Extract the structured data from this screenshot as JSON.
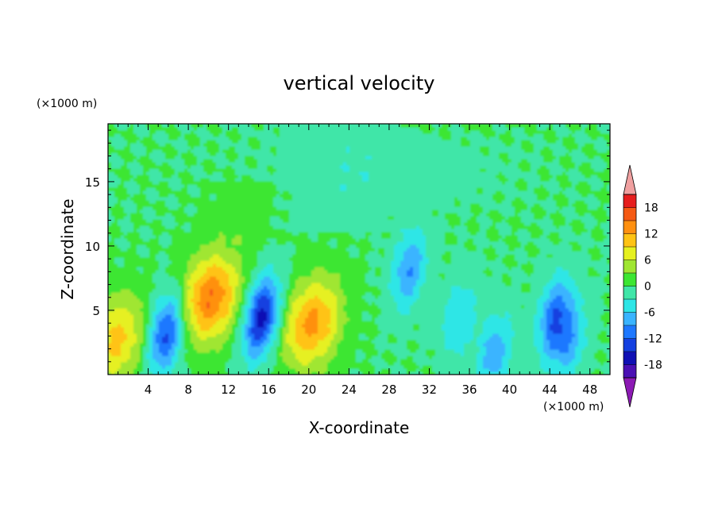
{
  "chart_data": {
    "type": "heatmap",
    "title": "vertical velocity",
    "xlabel": "X-coordinate",
    "ylabel": "Z-coordinate",
    "x_unit": "(×1000 m)",
    "y_unit": "(×1000 m)",
    "xlim": [
      0,
      50
    ],
    "ylim": [
      0,
      19.5
    ],
    "x_ticks": [
      4,
      8,
      12,
      16,
      20,
      24,
      28,
      32,
      36,
      40,
      44,
      48
    ],
    "y_ticks": [
      5,
      10,
      15
    ],
    "colorbar": {
      "levels": [
        -21,
        -18,
        -15,
        -12,
        -9,
        -6,
        -3,
        0,
        3,
        6,
        9,
        12,
        15,
        18,
        21
      ],
      "tick_labels": [
        -18,
        -12,
        -6,
        0,
        6,
        12,
        18
      ],
      "colors": [
        "#8c1ab4",
        "#4b10b4",
        "#1010b4",
        "#1440e0",
        "#1e78ff",
        "#3ab4ff",
        "#2ee6e6",
        "#40e6a8",
        "#3ce632",
        "#a0e632",
        "#e6f020",
        "#ffc314",
        "#ff9010",
        "#f55a14",
        "#e61e1e",
        "#f0a0a0"
      ],
      "extend": "both"
    },
    "features": [
      {
        "x": 0.8,
        "z": 2.8,
        "value": 10,
        "kind": "updraft"
      },
      {
        "x": 5.8,
        "z": 3.3,
        "value": -14,
        "kind": "downdraft"
      },
      {
        "x": 10.2,
        "z": 6.0,
        "value": 15,
        "kind": "updraft"
      },
      {
        "x": 15.3,
        "z": 4.5,
        "value": -17,
        "kind": "downdraft"
      },
      {
        "x": 20.3,
        "z": 4.0,
        "value": 13,
        "kind": "updraft"
      },
      {
        "x": 30.0,
        "z": 8.2,
        "value": -9,
        "kind": "downdraft"
      },
      {
        "x": 35.0,
        "z": 4.5,
        "value": -6,
        "kind": "downdraft"
      },
      {
        "x": 44.5,
        "z": 4.5,
        "value": -11,
        "kind": "downdraft"
      },
      {
        "x": 38.5,
        "z": 1.8,
        "value": -8,
        "kind": "downdraft"
      },
      {
        "x": 46.0,
        "z": 2.5,
        "value": -7,
        "kind": "downdraft"
      }
    ]
  }
}
